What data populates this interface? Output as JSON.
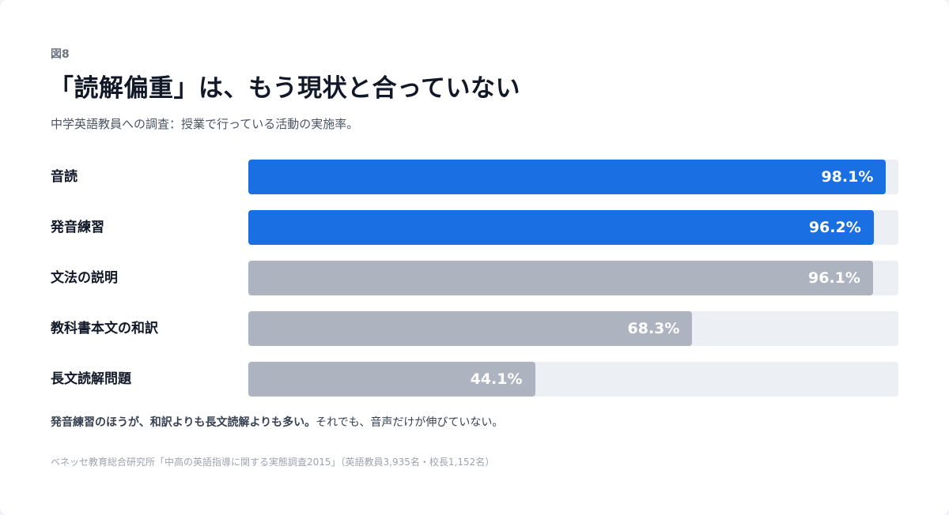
{
  "figure_label": "図8",
  "title": "「読解偏重」は、もう現状と合っていない",
  "subtitle": "中学英語教員への調査：授業で行っている活動の実施率。",
  "footnote": {
    "bold": "発音練習のほうが、和訳よりも長文読解よりも多い。",
    "normal": "それでも、音声だけが伸びていない。"
  },
  "source": "ベネッセ教育総合研究所「中高の英語指導に関する実態調査2015」（英語教員3,935名・校長1,152名）",
  "colors": {
    "highlight": "#1a6fe3",
    "muted": "#adb4bf",
    "track": "#eceff4"
  },
  "chart_data": {
    "type": "bar",
    "orientation": "horizontal",
    "categories": [
      "音読",
      "発音練習",
      "文法の説明",
      "教科書本文の和訳",
      "長文読解問題"
    ],
    "values": [
      98.1,
      96.2,
      96.1,
      68.3,
      44.1
    ],
    "value_labels": [
      "98.1%",
      "96.2%",
      "96.1%",
      "68.3%",
      "44.1%"
    ],
    "highlighted": [
      true,
      true,
      false,
      false,
      false
    ],
    "xlim": [
      0,
      100
    ],
    "title": "「読解偏重」は、もう現状と合っていない",
    "xlabel": "",
    "ylabel": "",
    "grid": false,
    "legend": "none"
  }
}
